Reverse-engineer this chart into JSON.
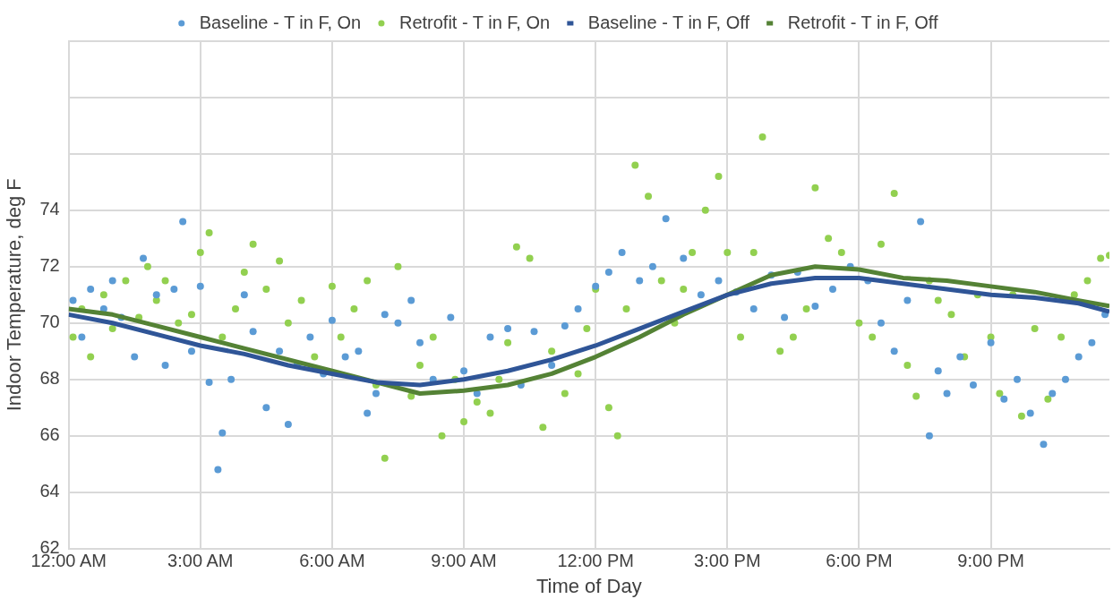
{
  "chart_data": {
    "type": "scatter",
    "xlabel": "Time of Day",
    "ylabel": "Indoor Temperature, deg F",
    "xlim": [
      0,
      23.7
    ],
    "xticks": [
      {
        "value": 0,
        "label": "12:00 AM"
      },
      {
        "value": 3,
        "label": "3:00 AM"
      },
      {
        "value": 6,
        "label": "6:00 AM"
      },
      {
        "value": 9,
        "label": "9:00 AM"
      },
      {
        "value": 12,
        "label": "12:00 PM"
      },
      {
        "value": 15,
        "label": "3:00 PM"
      },
      {
        "value": 18,
        "label": "6:00 PM"
      },
      {
        "value": 21,
        "label": "9:00 PM"
      }
    ],
    "ylim": [
      62,
      80
    ],
    "yticks": [
      62,
      64,
      66,
      68,
      70,
      72,
      74,
      {
        "value": 76,
        "label": null
      },
      {
        "value": 78,
        "label": null
      },
      {
        "value": 80,
        "label": null
      }
    ],
    "grid": true,
    "legend": "top",
    "series": [
      {
        "name": "Baseline - T in F, On",
        "marker": "circle",
        "color": "#5b9bd5",
        "x": [
          0.1,
          0.3,
          0.5,
          0.8,
          1.0,
          1.2,
          1.5,
          1.7,
          2.0,
          2.2,
          2.4,
          2.6,
          2.8,
          3.0,
          3.2,
          3.4,
          3.5,
          3.7,
          4.0,
          4.2,
          4.5,
          4.8,
          5.0,
          5.2,
          5.5,
          5.8,
          6.0,
          6.3,
          6.6,
          6.8,
          7.0,
          7.2,
          7.5,
          7.8,
          8.0,
          8.3,
          8.7,
          9.0,
          9.3,
          9.6,
          10.0,
          10.3,
          10.6,
          11.0,
          11.3,
          11.6,
          12.0,
          12.3,
          12.6,
          13.0,
          13.3,
          13.6,
          14.0,
          14.4,
          14.8,
          15.2,
          15.6,
          16.0,
          16.3,
          16.6,
          17.0,
          17.4,
          17.8,
          18.2,
          18.5,
          18.8,
          19.1,
          19.4,
          19.6,
          19.8,
          20.0,
          20.3,
          20.6,
          21.0,
          21.3,
          21.6,
          21.9,
          22.2,
          22.4,
          22.7,
          23.0,
          23.3,
          23.6
        ],
        "values": [
          70.8,
          69.5,
          71.2,
          70.5,
          71.5,
          70.2,
          68.8,
          72.3,
          71.0,
          68.5,
          71.2,
          73.6,
          69.0,
          71.3,
          67.9,
          64.8,
          66.1,
          68.0,
          71.0,
          69.7,
          67.0,
          69.0,
          66.4,
          68.5,
          69.5,
          68.2,
          70.1,
          68.8,
          69.0,
          66.8,
          67.5,
          70.3,
          70.0,
          70.8,
          69.3,
          68.0,
          70.2,
          68.3,
          67.5,
          69.5,
          69.8,
          67.8,
          69.7,
          68.5,
          69.9,
          70.5,
          71.3,
          71.8,
          72.5,
          71.5,
          72.0,
          73.7,
          72.3,
          71.0,
          71.5,
          71.1,
          70.5,
          71.7,
          70.2,
          71.8,
          70.6,
          71.2,
          72.0,
          71.5,
          70.0,
          69.0,
          70.8,
          73.6,
          66.0,
          68.3,
          67.5,
          68.8,
          67.8,
          69.3,
          67.3,
          68.0,
          66.8,
          65.7,
          67.5,
          68.0,
          68.8,
          69.3,
          70.3
        ]
      },
      {
        "name": "Retrofit - T in F, On",
        "marker": "circle",
        "color": "#92d050",
        "x": [
          0.1,
          0.3,
          0.5,
          0.8,
          1.0,
          1.3,
          1.6,
          1.8,
          2.0,
          2.2,
          2.5,
          2.8,
          3.0,
          3.2,
          3.5,
          3.8,
          4.0,
          4.2,
          4.5,
          4.8,
          5.0,
          5.3,
          5.6,
          6.0,
          6.2,
          6.5,
          6.8,
          7.0,
          7.2,
          7.5,
          7.8,
          8.0,
          8.3,
          8.5,
          8.8,
          9.0,
          9.3,
          9.6,
          9.8,
          10.0,
          10.2,
          10.5,
          10.8,
          11.0,
          11.3,
          11.6,
          11.8,
          12.0,
          12.3,
          12.5,
          12.7,
          12.9,
          13.2,
          13.5,
          13.8,
          14.0,
          14.2,
          14.5,
          14.8,
          15.0,
          15.3,
          15.6,
          15.8,
          16.2,
          16.5,
          16.8,
          17.0,
          17.3,
          17.6,
          18.0,
          18.3,
          18.5,
          18.8,
          19.1,
          19.3,
          19.6,
          19.8,
          20.1,
          20.4,
          20.7,
          21.0,
          21.2,
          21.5,
          21.7,
          22.0,
          22.3,
          22.6,
          22.9,
          23.2,
          23.5,
          23.7
        ],
        "values": [
          69.5,
          70.5,
          68.8,
          71.0,
          69.8,
          71.5,
          70.2,
          72.0,
          70.8,
          71.5,
          70.0,
          70.3,
          72.5,
          73.2,
          69.5,
          70.5,
          71.8,
          72.8,
          71.2,
          72.2,
          70.0,
          70.8,
          68.8,
          71.3,
          69.5,
          70.5,
          71.5,
          67.8,
          65.2,
          72.0,
          67.4,
          68.5,
          69.5,
          66.0,
          68.0,
          66.5,
          67.2,
          66.8,
          68.0,
          69.3,
          72.7,
          72.3,
          66.3,
          69.0,
          67.5,
          68.2,
          69.8,
          71.2,
          67.0,
          66.0,
          70.5,
          75.6,
          74.5,
          71.5,
          70.0,
          71.2,
          72.5,
          74.0,
          75.2,
          72.5,
          69.5,
          72.5,
          76.6,
          69.0,
          69.5,
          70.5,
          74.8,
          73.0,
          72.5,
          70.0,
          69.5,
          72.8,
          74.6,
          68.5,
          67.4,
          71.5,
          70.8,
          70.3,
          68.8,
          71.0,
          69.5,
          67.5,
          71.0,
          66.7,
          69.8,
          67.3,
          69.5,
          71.0,
          71.5,
          72.3,
          72.4
        ]
      },
      {
        "name": "Baseline - T in F, Off",
        "type": "line",
        "marker": "none",
        "color": "#2f5597",
        "x": [
          0,
          1,
          2,
          3,
          4,
          5,
          6,
          7,
          8,
          9,
          10,
          11,
          12,
          13,
          14,
          15,
          16,
          17,
          18,
          19,
          20,
          21,
          22,
          23,
          23.7
        ],
        "values": [
          70.3,
          70.0,
          69.6,
          69.2,
          68.9,
          68.5,
          68.2,
          67.9,
          67.8,
          68.0,
          68.3,
          68.7,
          69.2,
          69.8,
          70.4,
          71.0,
          71.4,
          71.6,
          71.6,
          71.4,
          71.2,
          71.0,
          70.9,
          70.7,
          70.4
        ]
      },
      {
        "name": "Retrofit - T in F, Off",
        "type": "line",
        "marker": "none",
        "color": "#548235",
        "x": [
          0,
          1,
          2,
          3,
          4,
          5,
          6,
          7,
          8,
          9,
          10,
          11,
          12,
          13,
          14,
          15,
          16,
          17,
          18,
          19,
          20,
          21,
          22,
          23,
          23.7
        ],
        "values": [
          70.5,
          70.3,
          69.9,
          69.5,
          69.1,
          68.7,
          68.3,
          67.9,
          67.5,
          67.6,
          67.8,
          68.2,
          68.8,
          69.5,
          70.3,
          71.0,
          71.7,
          72.0,
          71.9,
          71.6,
          71.5,
          71.3,
          71.1,
          70.8,
          70.6
        ]
      }
    ]
  }
}
